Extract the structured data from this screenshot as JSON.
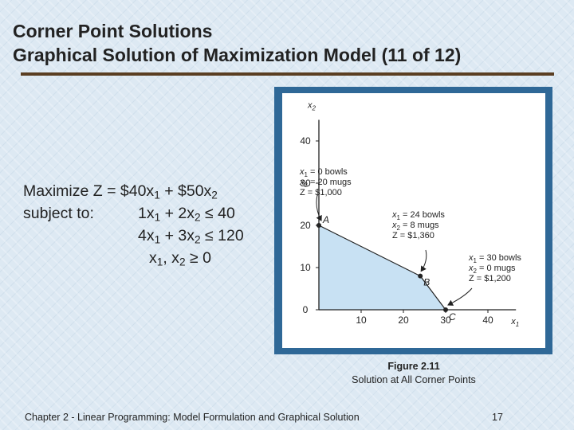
{
  "slide": {
    "title_line1": "Corner Point Solutions",
    "title_line2": "Graphical Solution of Maximization Model (11 of 12)",
    "footer": "Chapter 2 - Linear Programming:  Model Formulation and Graphical Solution",
    "page_number": "17"
  },
  "model": {
    "objective_prefix": "Maximize Z = $40x",
    "objective_mid": " + $50x",
    "subject_to": "subject to:",
    "c1_a": "1x",
    "c1_b": " + 2x",
    "c1_c": "≤ 40",
    "c2_a": "4x",
    "c2_b": " + 3x",
    "c2_c": "≤ 120",
    "nn_a": "x",
    "nn_b": ", x",
    "nn_c": "≥ 0",
    "sub1": "1",
    "sub2": "2"
  },
  "caption": {
    "figure": "Figure 2.11",
    "text": "Solution at All Corner Points"
  },
  "chart_data": {
    "type": "area",
    "xlim": [
      0,
      45
    ],
    "ylim": [
      0,
      45
    ],
    "x_ticks": [
      "10",
      "20",
      "30",
      "40"
    ],
    "y_ticks": [
      "0",
      "10",
      "20",
      "30",
      "40"
    ],
    "x_label_base": "x",
    "x_label_sub": "1",
    "y_label_base": "x",
    "y_label_sub": "2",
    "feasible_region": [
      [
        0,
        0
      ],
      [
        0,
        20
      ],
      [
        24,
        8
      ],
      [
        30,
        0
      ]
    ],
    "fill_color": "#c8e1f3",
    "corner_points": [
      {
        "name": "A",
        "x": 0,
        "y": 20,
        "annotation": [
          "x1 = 0 bowls",
          "x2 = 20 mugs",
          "Z = $1,000"
        ]
      },
      {
        "name": "B",
        "x": 24,
        "y": 8,
        "annotation": [
          "x1 = 24 bowls",
          "x2 = 8 mugs",
          "Z = $1,360"
        ]
      },
      {
        "name": "C",
        "x": 30,
        "y": 0,
        "annotation": [
          "x1 = 30 bowls",
          "x2 = 0 mugs",
          "Z = $1,200"
        ]
      }
    ]
  }
}
